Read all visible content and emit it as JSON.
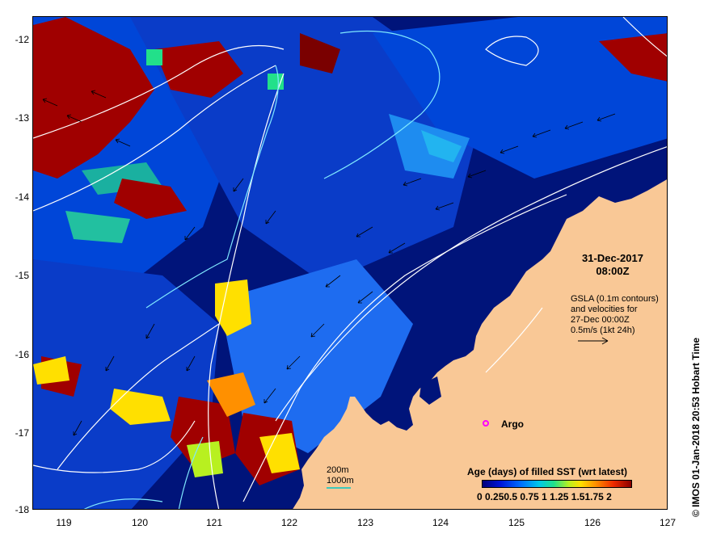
{
  "map": {
    "y_ticks": [
      "-12",
      "-13",
      "-14",
      "-15",
      "-16",
      "-17",
      "-18"
    ],
    "x_ticks": [
      "119",
      "120",
      "121",
      "122",
      "123",
      "124",
      "125",
      "126",
      "127"
    ],
    "lat_range": [
      -18,
      -11.8
    ],
    "lon_range": [
      118.6,
      127
    ],
    "colors": {
      "ocean_deep": "#00147a",
      "ocean_mid": "#0046d8",
      "ocean_light": "#1e8cf0",
      "land": "#f9c896",
      "old_sst": "#a00000",
      "contour": "#ffffff",
      "contour_alt": "#7fe8ff"
    }
  },
  "annotation": {
    "date": "31-Dec-2017",
    "time": "08:00Z",
    "gsla_line1": "GSLA (0.1m contours)",
    "gsla_line2": "and velocities for",
    "gsla_line3": "27-Dec 00:00Z",
    "velocity_scale": "0.5m/s (1kt 24h)"
  },
  "argo": {
    "label": "Argo",
    "color": "#ff00ff"
  },
  "depth_legend": {
    "line1": "200m",
    "line2": "1000m"
  },
  "colorbar": {
    "title": "Age (days) of filled SST (wrt latest)",
    "ticks": "0  0.250.5 0.75  1  1.25 1.51.75  2"
  },
  "credit": "© IMOS 01-Jan-2018 20:53 Hobart Time"
}
